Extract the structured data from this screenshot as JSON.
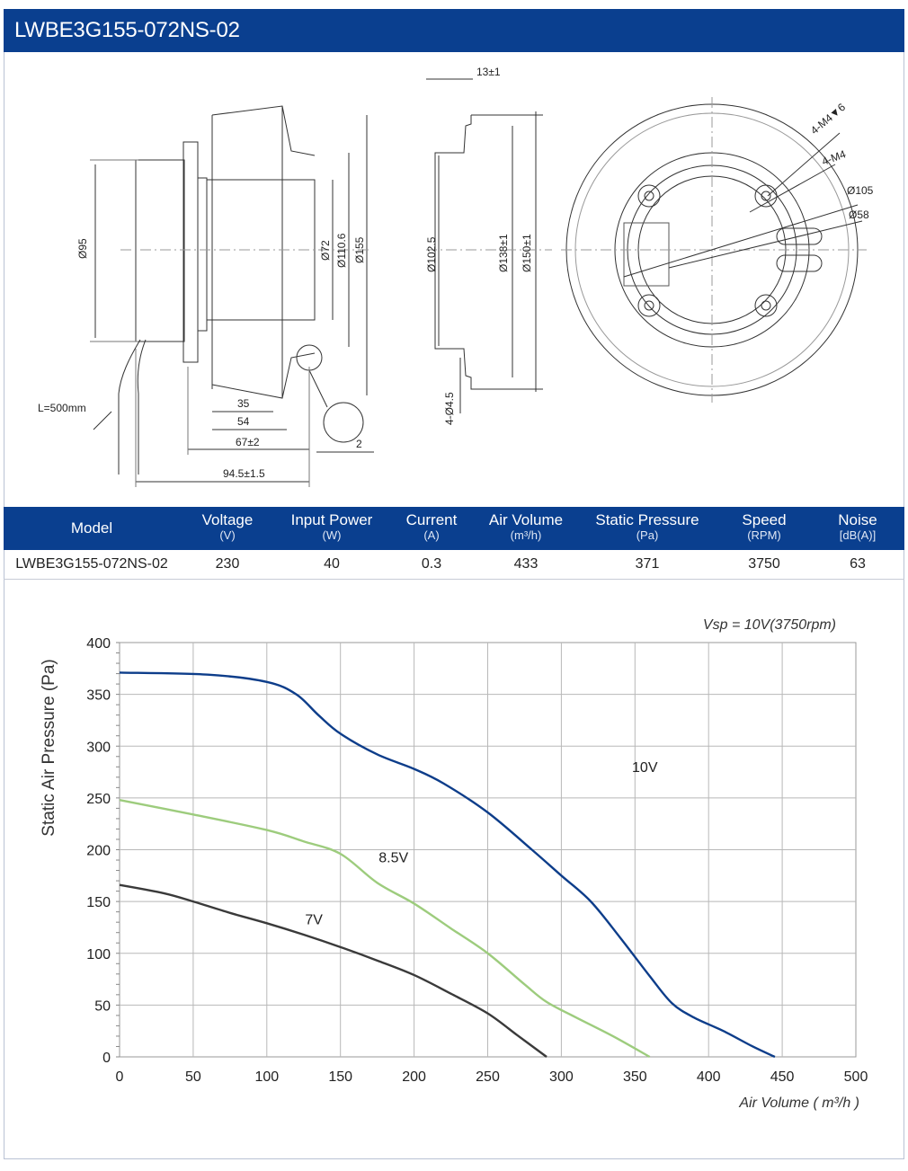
{
  "title": "LWBE3G155-072NS-02",
  "drawing": {
    "side_labels": {
      "cable": "L=500mm",
      "d95": "Ø95",
      "d72": "Ø72",
      "d110": "Ø110.6",
      "d155": "Ø155",
      "len35": "35",
      "len54": "54",
      "len67": "67±2",
      "len94": "94.5±1.5",
      "len2": "2"
    },
    "mid_labels": {
      "t13": "13±1",
      "d102": "Ø102.5",
      "d138": "Ø138±1",
      "d150": "Ø150±1",
      "holes": "4-Ø4.5"
    },
    "front_labels": {
      "m4v6": "4-M4▼6",
      "m4": "4-M4",
      "d105": "Ø105",
      "d58": "Ø58"
    }
  },
  "table": {
    "headers": [
      {
        "label": "Model",
        "unit": ""
      },
      {
        "label": "Voltage",
        "unit": "(V)"
      },
      {
        "label": "Input Power",
        "unit": "(W)"
      },
      {
        "label": "Current",
        "unit": "(A)"
      },
      {
        "label": "Air Volume",
        "unit": "(m³/h)"
      },
      {
        "label": "Static Pressure",
        "unit": "(Pa)"
      },
      {
        "label": "Speed",
        "unit": "(RPM)"
      },
      {
        "label": "Noise",
        "unit": "[dB(A)]"
      }
    ],
    "row": [
      "LWBE3G155-072NS-02",
      "230",
      "40",
      "0.3",
      "433",
      "371",
      "3750",
      "63"
    ]
  },
  "chart_data": {
    "type": "line",
    "title": "Vsp = 10V(3750rpm)",
    "xlabel": "Air Volume ( m³/h )",
    "ylabel": "Static Air Pressure  (Pa)",
    "xlim": [
      0,
      500
    ],
    "ylim": [
      0,
      400
    ],
    "xticks": [
      0,
      50,
      100,
      150,
      200,
      250,
      300,
      350,
      400,
      450,
      500
    ],
    "yticks": [
      0,
      50,
      100,
      150,
      200,
      250,
      300,
      350,
      400
    ],
    "grid": true,
    "series": [
      {
        "name": "10V",
        "color": "#0d3d8a",
        "x": [
          0,
          60,
          100,
          120,
          135,
          150,
          175,
          200,
          220,
          250,
          280,
          300,
          320,
          340,
          360,
          375,
          390,
          410,
          430,
          445
        ],
        "y": [
          371,
          369,
          362,
          350,
          330,
          312,
          292,
          278,
          264,
          236,
          200,
          175,
          150,
          115,
          78,
          52,
          38,
          25,
          10,
          0
        ]
      },
      {
        "name": "8.5V",
        "color": "#9dcc7d",
        "x": [
          0,
          50,
          100,
          125,
          150,
          175,
          200,
          225,
          250,
          275,
          290,
          310,
          335,
          360
        ],
        "y": [
          248,
          234,
          219,
          208,
          196,
          168,
          148,
          124,
          100,
          70,
          53,
          38,
          20,
          0
        ]
      },
      {
        "name": "7V",
        "color": "#3a3a3a",
        "x": [
          0,
          30,
          50,
          75,
          100,
          125,
          150,
          175,
          200,
          225,
          250,
          270,
          290
        ],
        "y": [
          166,
          158,
          150,
          139,
          129,
          118,
          106,
          93,
          79,
          61,
          42,
          21,
          0
        ]
      }
    ]
  }
}
